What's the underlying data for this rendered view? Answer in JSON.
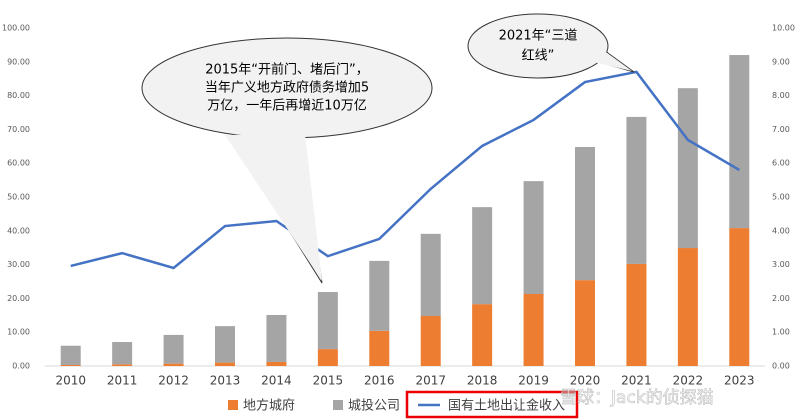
{
  "chart_data": {
    "type": "bar-line",
    "categories": [
      "2010",
      "2011",
      "2012",
      "2013",
      "2014",
      "2015",
      "2016",
      "2017",
      "2018",
      "2019",
      "2020",
      "2021",
      "2022",
      "2023"
    ],
    "series": [
      {
        "name": "地方城府",
        "color": "#ed7d31",
        "type": "bar",
        "values": [
          0.3,
          0.5,
          0.7,
          1.0,
          1.2,
          5.0,
          10.4,
          14.8,
          18.3,
          21.3,
          25.4,
          30.2,
          34.9,
          40.8
        ]
      },
      {
        "name": "城投公司",
        "color": "#a5a5a5",
        "type": "bar",
        "values": [
          5.7,
          6.6,
          8.5,
          10.8,
          13.9,
          16.9,
          20.7,
          24.3,
          28.7,
          33.4,
          39.4,
          43.5,
          47.3,
          51.2
        ]
      },
      {
        "name": "国有土地出让金收入",
        "color": "#4472c4",
        "type": "line",
        "axis": "y2",
        "values": [
          2.96,
          3.34,
          2.9,
          4.14,
          4.29,
          3.25,
          3.76,
          5.24,
          6.51,
          7.28,
          8.4,
          8.7,
          6.69,
          5.8
        ]
      }
    ],
    "ylim": [
      0,
      100
    ],
    "yticks": [
      {
        "value": 0,
        "label": "0.00"
      },
      {
        "value": 10,
        "label": "10.00"
      },
      {
        "value": 20,
        "label": "20.00"
      },
      {
        "value": 30,
        "label": "30.00"
      },
      {
        "value": 40,
        "label": "40.00"
      },
      {
        "value": 50,
        "label": "50.00"
      },
      {
        "value": 60,
        "label": "60.00"
      },
      {
        "value": 70,
        "label": "70.00"
      },
      {
        "value": 80,
        "label": "80.00"
      },
      {
        "value": 90,
        "label": "90.00"
      },
      {
        "value": 100,
        "label": "100.00"
      }
    ],
    "y2lim": [
      0,
      10
    ],
    "y2ticks": [
      {
        "value": 0,
        "label": "0.00"
      },
      {
        "value": 1,
        "label": "1.00"
      },
      {
        "value": 2,
        "label": "2.00"
      },
      {
        "value": 3,
        "label": "3.00"
      },
      {
        "value": 4,
        "label": "4.00"
      },
      {
        "value": 5,
        "label": "5.00"
      },
      {
        "value": 6,
        "label": "6.00"
      },
      {
        "value": 7,
        "label": "7.00"
      },
      {
        "value": 8,
        "label": "8.00"
      },
      {
        "value": 9,
        "label": "9.00"
      },
      {
        "value": 10,
        "label": "10.00"
      }
    ],
    "annotations": [
      [
        "2015年“开前门、堵后门”，",
        "当年广义地方政府债务增加5",
        "万亿，一年后再增近10万亿"
      ],
      [
        "2021年“三道",
        "红线”"
      ]
    ],
    "watermark": "雪球：Jack的侦探猫"
  }
}
